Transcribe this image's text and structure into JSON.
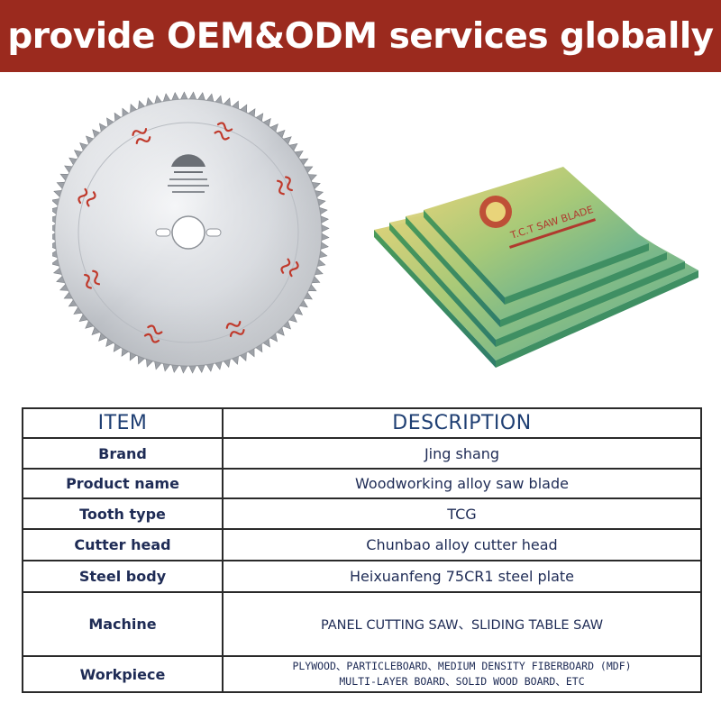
{
  "banner": {
    "title": "provide OEM&ODM services globally"
  },
  "box": {
    "label": "T.C.T SAW BLADE"
  },
  "table": {
    "headers": {
      "item": "ITEM",
      "description": "DESCRIPTION"
    },
    "rows": [
      {
        "item": "Brand",
        "description": "Jing shang"
      },
      {
        "item": "Product name",
        "description": "Woodworking alloy saw blade"
      },
      {
        "item": "Tooth type",
        "description": "TCG"
      },
      {
        "item": "Cutter head",
        "description": "Chunbao alloy cutter head"
      },
      {
        "item": "Steel body",
        "description": "Heixuanfeng 75CR1 steel plate"
      },
      {
        "item": "Machine",
        "description": "PANEL CUTTING SAW、SLIDING TABLE SAW"
      },
      {
        "item": "Workpiece",
        "description_line1": "PLYWOOD、PARTICLEBOARD、MEDIUM DENSITY FIBERBOARD (MDF)",
        "description_line2": "MULTI-LAYER BOARD、SOLID WOOD BOARD、ETC"
      }
    ]
  }
}
